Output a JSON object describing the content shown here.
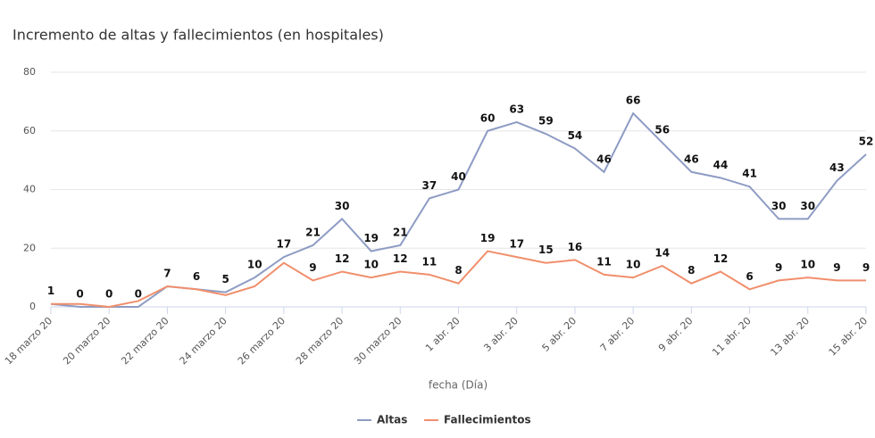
{
  "chart_data": {
    "type": "line",
    "title": "Incremento de altas y fallecimientos (en hospitales)",
    "x_label": "fecha (Día)",
    "categories": [
      "18 marzo 20",
      null,
      "20 marzo 20",
      null,
      "22 marzo 20",
      null,
      "24 marzo 20",
      null,
      "26 marzo 20",
      null,
      "28 marzo 20",
      null,
      "30 marzo 20",
      null,
      "1 abr. 20",
      null,
      "3 abr. 20",
      null,
      "5 abr. 20",
      null,
      "7 abr. 20",
      null,
      "9 abr. 20",
      null,
      "11 abr. 20",
      null,
      "13 abr. 20",
      null,
      "15 abr. 20"
    ],
    "series": [
      {
        "name": "Altas",
        "color": "#8e9cc4",
        "values": [
          1,
          0,
          0,
          0,
          7,
          6,
          5,
          10,
          17,
          21,
          30,
          19,
          21,
          37,
          40,
          60,
          63,
          59,
          54,
          46,
          66,
          56,
          46,
          44,
          41,
          30,
          30,
          43,
          52
        ]
      },
      {
        "name": "Fallecimientos",
        "color": "#f08f6c",
        "values": [
          1,
          1,
          0,
          2,
          7,
          6,
          4,
          7,
          15,
          9,
          12,
          10,
          12,
          11,
          8,
          19,
          17,
          15,
          16,
          11,
          10,
          14,
          8,
          12,
          6,
          9,
          10,
          9,
          9
        ],
        "value_labels": [
          null,
          null,
          null,
          null,
          null,
          null,
          null,
          null,
          null,
          "9",
          "12",
          "10",
          "12",
          "11",
          "8",
          "19",
          "17",
          "15",
          "16",
          "11",
          "10",
          "14",
          "8",
          "12",
          "6",
          "9",
          "10",
          "9",
          "9"
        ]
      }
    ],
    "ylim": [
      0,
      80
    ],
    "yticks": [
      0,
      20,
      40,
      60,
      80
    ],
    "grid": true,
    "legend": "bottom"
  }
}
